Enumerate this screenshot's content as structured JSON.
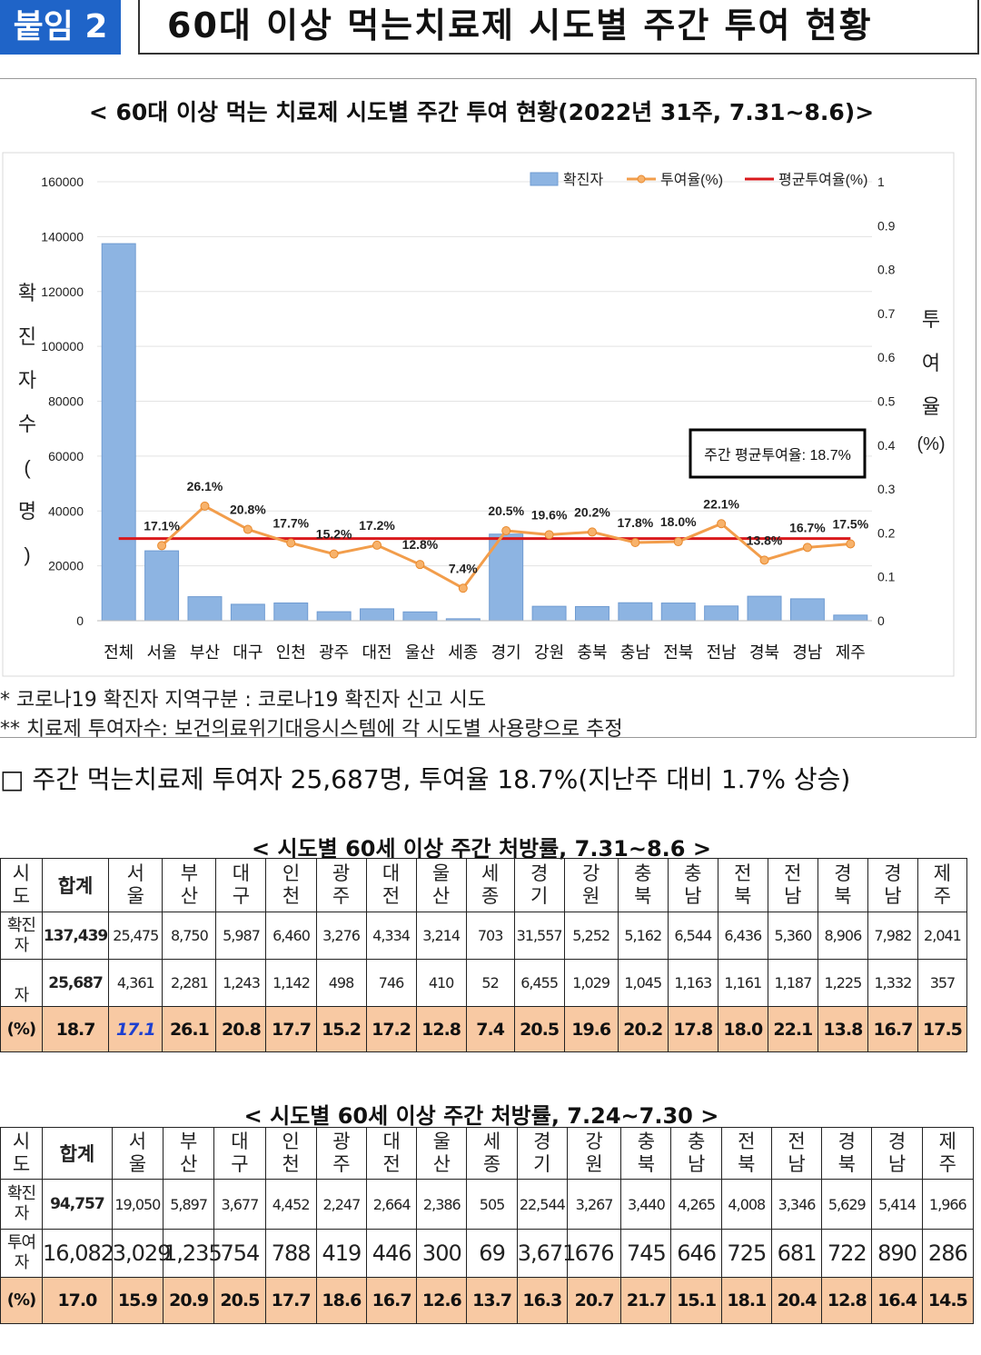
{
  "header": {
    "badge": "붙임 2",
    "title": "60대 이상 먹는치료제 시도별 주간 투여 현황"
  },
  "chart_data": {
    "type": "bar",
    "title": "< 60대 이상 먹는 치료제 시도별 주간 투여 현황(2022년 31주, 7.31~8.6)>",
    "categories": [
      "전체",
      "서울",
      "부산",
      "대구",
      "인천",
      "광주",
      "대전",
      "울산",
      "세종",
      "경기",
      "강원",
      "충북",
      "충남",
      "전북",
      "전남",
      "경북",
      "경남",
      "제주"
    ],
    "series": [
      {
        "name": "확진자",
        "type": "bar",
        "axis": "left",
        "color": "#8db4e2",
        "values": [
          137439,
          25475,
          8750,
          5987,
          6460,
          3276,
          4334,
          3214,
          703,
          31557,
          5252,
          5162,
          6544,
          6436,
          5360,
          8906,
          7982,
          2041
        ]
      },
      {
        "name": "투여율(%)",
        "type": "line",
        "axis": "right",
        "color": "#f29d4b",
        "values": [
          null,
          0.171,
          0.261,
          0.208,
          0.177,
          0.152,
          0.172,
          0.128,
          0.074,
          0.205,
          0.196,
          0.202,
          0.178,
          0.18,
          0.221,
          0.138,
          0.167,
          0.175
        ],
        "labels": [
          "",
          "17.1%",
          "26.1%",
          "20.8%",
          "17.7%",
          "15.2%",
          "17.2%",
          "12.8%",
          "7.4%",
          "20.5%",
          "19.6%",
          "20.2%",
          "17.8%",
          "18.0%",
          "22.1%",
          "13.8%",
          "16.7%",
          "17.5%"
        ]
      },
      {
        "name": "평균투여율(%)",
        "type": "line",
        "axis": "right",
        "color": "#d9191c",
        "value": 0.187
      }
    ],
    "ylabel": "확진자수(명)",
    "y2label": "투여율(%)",
    "ylim": [
      0,
      160000
    ],
    "yticks": [
      0,
      20000,
      40000,
      60000,
      80000,
      100000,
      120000,
      140000,
      160000
    ],
    "y2lim": [
      0,
      1
    ],
    "y2ticks": [
      0,
      0.1,
      0.2,
      0.3,
      0.4,
      0.5,
      0.6,
      0.7,
      0.8,
      0.9,
      1
    ],
    "annotation": "주간 평균투여율: 18.7%",
    "legend": "top-right",
    "grid": true
  },
  "notes": [
    "* 코로나19 확진자 지역구분 : 코로나19 확진자 신고 시도",
    "** 치료제 투여자수: 보건의료위기대응시스템에 각 시도별 사용량으로 추정"
  ],
  "summary": "□ 주간 먹는치료제 투여자 25,687명, 투여율 18.7%(지난주 대비 1.7% 상승)",
  "table1": {
    "title": "< 시도별 60세 이상 주간 처방률, 7.31~8.6 >",
    "header": [
      "시도",
      "합계",
      "서울",
      "부산",
      "대구",
      "인천",
      "광주",
      "대전",
      "울산",
      "세종",
      "경기",
      "강원",
      "충북",
      "충남",
      "전북",
      "전남",
      "경북",
      "경남",
      "제주"
    ],
    "rows": [
      {
        "label": "확진자",
        "cells": [
          "137,439",
          "25,475",
          "8,750",
          "5,987",
          "6,460",
          "3,276",
          "4,334",
          "3,214",
          "703",
          "31,557",
          "5,252",
          "5,162",
          "6,544",
          "6,436",
          "5,360",
          "8,906",
          "7,982",
          "2,041"
        ]
      },
      {
        "label": "자",
        "cells": [
          "25,687",
          "4,361",
          "2,281",
          "1,243",
          "1,142",
          "498",
          "746",
          "410",
          "52",
          "6,455",
          "1,029",
          "1,045",
          "1,163",
          "1,161",
          "1,187",
          "1,225",
          "1,332",
          "357"
        ]
      },
      {
        "label": "(%)",
        "cells": [
          "18.7",
          "17.1",
          "26.1",
          "20.8",
          "17.7",
          "15.2",
          "17.2",
          "12.8",
          "7.4",
          "20.5",
          "19.6",
          "20.2",
          "17.8",
          "18.0",
          "22.1",
          "13.8",
          "16.7",
          "17.5"
        ]
      }
    ]
  },
  "table2": {
    "title": "< 시도별 60세 이상 주간 처방률, 7.24~7.30 >",
    "header": [
      "시도",
      "합계",
      "서울",
      "부산",
      "대구",
      "인천",
      "광주",
      "대전",
      "울산",
      "세종",
      "경기",
      "강원",
      "충북",
      "충남",
      "전북",
      "전남",
      "경북",
      "경남",
      "제주"
    ],
    "rows": [
      {
        "label": "확진자",
        "cells": [
          "94,757",
          "19,050",
          "5,897",
          "3,677",
          "4,452",
          "2,247",
          "2,664",
          "2,386",
          "505",
          "22,544",
          "3,267",
          "3,440",
          "4,265",
          "4,008",
          "3,346",
          "5,629",
          "5,414",
          "1,966"
        ]
      },
      {
        "label": "투여자",
        "cells": [
          "16,082",
          "3,029",
          "1,235",
          "754",
          "788",
          "419",
          "446",
          "300",
          "69",
          "3,671",
          "676",
          "745",
          "646",
          "725",
          "681",
          "722",
          "890",
          "286"
        ]
      },
      {
        "label": "(%)",
        "cells": [
          "17.0",
          "15.9",
          "20.9",
          "20.5",
          "17.7",
          "18.6",
          "16.7",
          "12.6",
          "13.7",
          "16.3",
          "20.7",
          "21.7",
          "15.1",
          "18.1",
          "20.4",
          "12.8",
          "16.4",
          "14.5"
        ]
      }
    ]
  }
}
